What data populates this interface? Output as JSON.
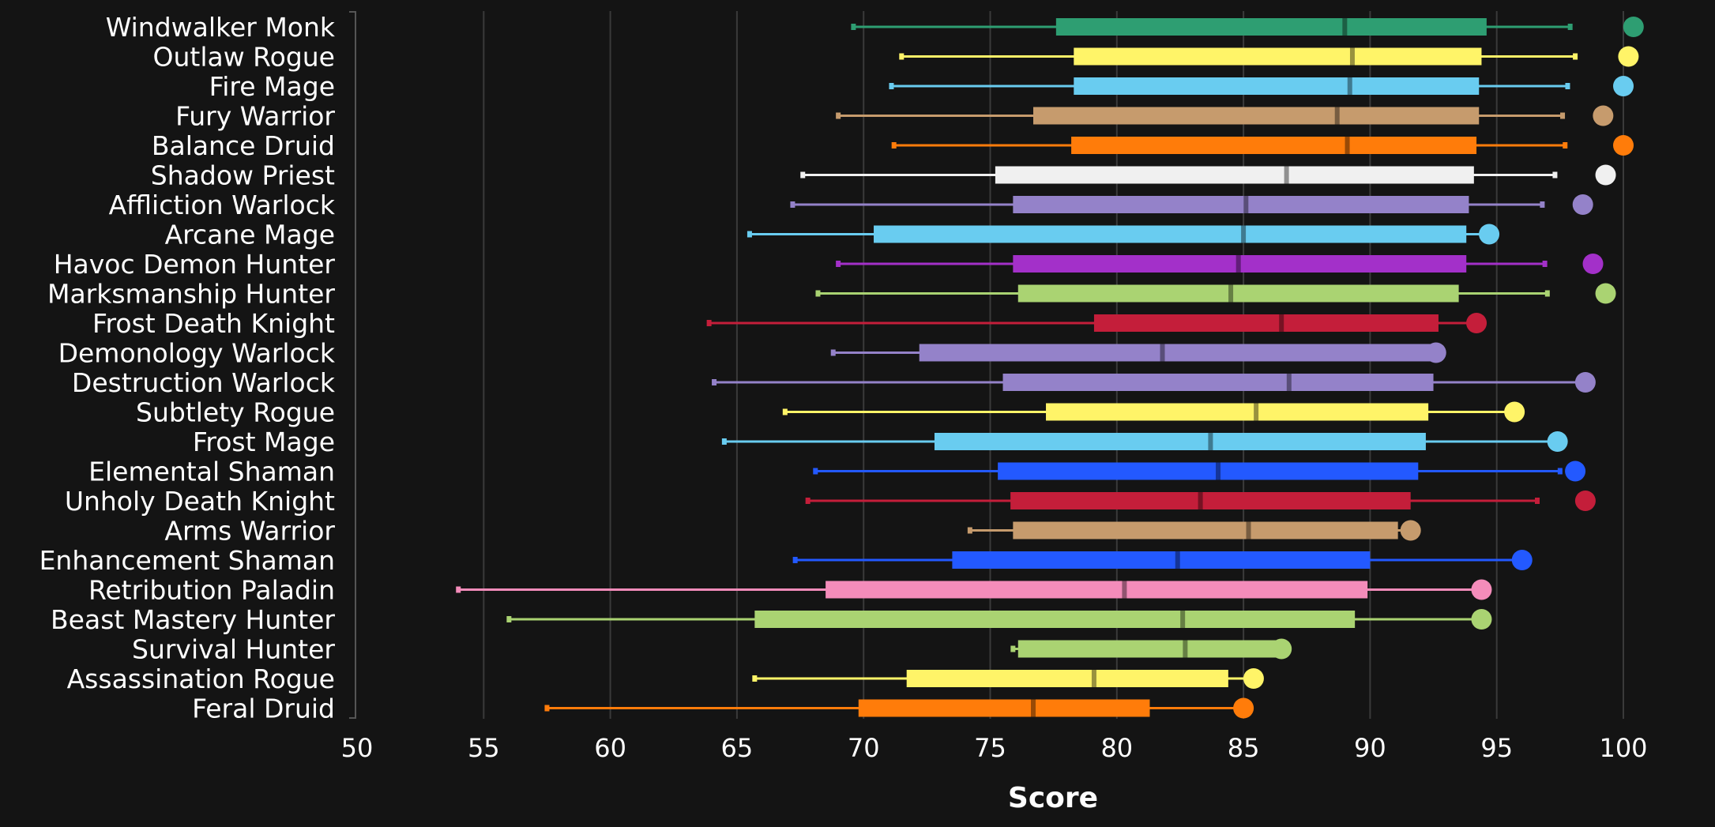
{
  "chart_data": {
    "type": "boxplot",
    "xlabel": "Score",
    "xlim": [
      50,
      100
    ],
    "x_ticks": [
      50,
      55,
      60,
      65,
      70,
      75,
      80,
      85,
      90,
      95,
      100
    ],
    "grid": true,
    "series": [
      {
        "name": "Windwalker Monk",
        "color": "#2e9e72",
        "min": 69.6,
        "q1": 77.6,
        "median": 89.0,
        "q3": 94.6,
        "max": 97.9,
        "top": 100.4
      },
      {
        "name": "Outlaw Rogue",
        "color": "#fff468",
        "min": 71.5,
        "q1": 78.3,
        "median": 89.3,
        "q3": 94.4,
        "max": 98.1,
        "top": 100.2
      },
      {
        "name": "Fire Mage",
        "color": "#69ccf0",
        "min": 71.1,
        "q1": 78.3,
        "median": 89.2,
        "q3": 94.3,
        "max": 97.8,
        "top": 100.0
      },
      {
        "name": "Fury Warrior",
        "color": "#c69b6d",
        "min": 69.0,
        "q1": 76.7,
        "median": 88.7,
        "q3": 94.3,
        "max": 97.6,
        "top": 99.2
      },
      {
        "name": "Balance Druid",
        "color": "#ff7c0a",
        "min": 71.2,
        "q1": 78.2,
        "median": 89.1,
        "q3": 94.2,
        "max": 97.7,
        "top": 100.0
      },
      {
        "name": "Shadow Priest",
        "color": "#f0f0f0",
        "min": 67.6,
        "q1": 75.2,
        "median": 86.7,
        "q3": 94.1,
        "max": 97.3,
        "top": 99.3
      },
      {
        "name": "Affliction Warlock",
        "color": "#9482c9",
        "min": 67.2,
        "q1": 75.9,
        "median": 85.1,
        "q3": 93.9,
        "max": 96.8,
        "top": 98.4
      },
      {
        "name": "Arcane Mage",
        "color": "#69ccf0",
        "min": 65.5,
        "q1": 70.4,
        "median": 85.0,
        "q3": 93.8,
        "max": 94.7,
        "top": 94.7
      },
      {
        "name": "Havoc Demon Hunter",
        "color": "#a330c9",
        "min": 69.0,
        "q1": 75.9,
        "median": 84.8,
        "q3": 93.8,
        "max": 96.9,
        "top": 98.8
      },
      {
        "name": "Marksmanship Hunter",
        "color": "#aad372",
        "min": 68.2,
        "q1": 76.1,
        "median": 84.5,
        "q3": 93.5,
        "max": 97.0,
        "top": 99.3
      },
      {
        "name": "Frost Death Knight",
        "color": "#c41e3a",
        "min": 63.9,
        "q1": 79.1,
        "median": 86.5,
        "q3": 92.7,
        "max": 94.2,
        "top": 94.2
      },
      {
        "name": "Demonology Warlock",
        "color": "#9482c9",
        "min": 68.8,
        "q1": 72.2,
        "median": 81.8,
        "q3": 92.6,
        "max": 92.6,
        "top": 92.6
      },
      {
        "name": "Destruction Warlock",
        "color": "#9482c9",
        "min": 64.1,
        "q1": 75.5,
        "median": 86.8,
        "q3": 92.5,
        "max": 98.5,
        "top": 98.5
      },
      {
        "name": "Subtlety Rogue",
        "color": "#fff468",
        "min": 66.9,
        "q1": 77.2,
        "median": 85.5,
        "q3": 92.3,
        "max": 95.7,
        "top": 95.7
      },
      {
        "name": "Frost Mage",
        "color": "#69ccf0",
        "min": 64.5,
        "q1": 72.8,
        "median": 83.7,
        "q3": 92.2,
        "max": 97.4,
        "top": 97.4
      },
      {
        "name": "Elemental Shaman",
        "color": "#2359ff",
        "min": 68.1,
        "q1": 75.3,
        "median": 84.0,
        "q3": 91.9,
        "max": 97.5,
        "top": 98.1
      },
      {
        "name": "Unholy Death Knight",
        "color": "#c41e3a",
        "min": 67.8,
        "q1": 75.8,
        "median": 83.3,
        "q3": 91.6,
        "max": 96.6,
        "top": 98.5
      },
      {
        "name": "Arms Warrior",
        "color": "#c69b6d",
        "min": 74.2,
        "q1": 75.9,
        "median": 85.2,
        "q3": 91.1,
        "max": 91.6,
        "top": 91.6
      },
      {
        "name": "Enhancement Shaman",
        "color": "#2359ff",
        "min": 67.3,
        "q1": 73.5,
        "median": 82.4,
        "q3": 90.0,
        "max": 96.0,
        "top": 96.0
      },
      {
        "name": "Retribution Paladin",
        "color": "#f48cba",
        "min": 54.0,
        "q1": 68.5,
        "median": 80.3,
        "q3": 89.9,
        "max": 94.4,
        "top": 94.4
      },
      {
        "name": "Beast Mastery Hunter",
        "color": "#aad372",
        "min": 56.0,
        "q1": 65.7,
        "median": 82.6,
        "q3": 89.4,
        "max": 94.4,
        "top": 94.4
      },
      {
        "name": "Survival Hunter",
        "color": "#aad372",
        "min": 75.9,
        "q1": 76.1,
        "median": 82.7,
        "q3": 86.5,
        "max": 86.5,
        "top": 86.5
      },
      {
        "name": "Assassination Rogue",
        "color": "#fff468",
        "min": 65.7,
        "q1": 71.7,
        "median": 79.1,
        "q3": 84.4,
        "max": 85.4,
        "top": 85.4
      },
      {
        "name": "Feral Druid",
        "color": "#ff7c0a",
        "min": 57.5,
        "q1": 69.8,
        "median": 76.7,
        "q3": 81.3,
        "max": 85.0,
        "top": 85.0
      }
    ]
  }
}
